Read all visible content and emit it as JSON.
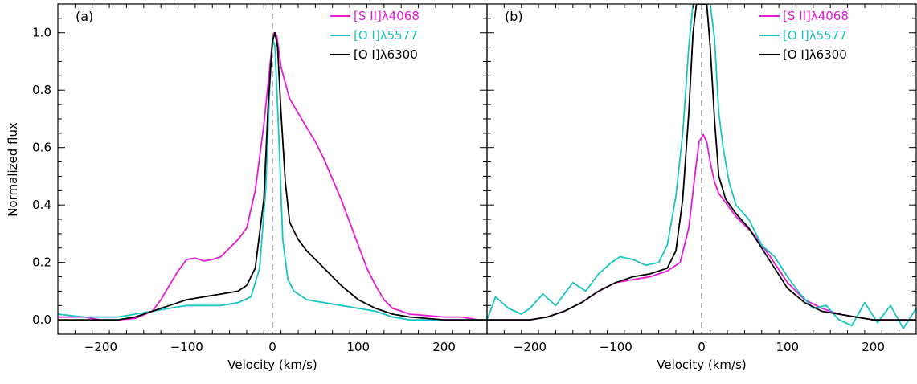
{
  "chart_data": [
    {
      "type": "line",
      "panel_label": "(a)",
      "xlabel": "Velocity (km/s)",
      "ylabel": "Normalized flux",
      "xlim": [
        -250,
        250
      ],
      "ylim": [
        -0.05,
        1.1
      ],
      "xticks": [
        -200,
        -100,
        0,
        100,
        200
      ],
      "yticks": [
        0.0,
        0.2,
        0.4,
        0.6,
        0.8,
        1.0
      ],
      "xtick_labels": [
        "−200",
        "−100",
        "0",
        "100",
        "200"
      ],
      "ytick_labels": [
        "0.0",
        "0.2",
        "0.4",
        "0.6",
        "0.8",
        "1.0"
      ],
      "reference_line_x": 0,
      "legend_position": "top-right",
      "series": [
        {
          "name": "[S II]λ4068",
          "color": "#e619d6",
          "points": [
            [
              -250,
              0.01
            ],
            [
              -220,
              0.01
            ],
            [
              -200,
              0.0
            ],
            [
              -180,
              0.0
            ],
            [
              -160,
              0.005
            ],
            [
              -140,
              0.03
            ],
            [
              -130,
              0.07
            ],
            [
              -120,
              0.12
            ],
            [
              -110,
              0.17
            ],
            [
              -100,
              0.21
            ],
            [
              -90,
              0.215
            ],
            [
              -80,
              0.205
            ],
            [
              -70,
              0.21
            ],
            [
              -60,
              0.22
            ],
            [
              -50,
              0.25
            ],
            [
              -40,
              0.28
            ],
            [
              -30,
              0.32
            ],
            [
              -20,
              0.45
            ],
            [
              -10,
              0.68
            ],
            [
              0,
              0.97
            ],
            [
              2,
              1.0
            ],
            [
              5,
              0.99
            ],
            [
              10,
              0.88
            ],
            [
              20,
              0.77
            ],
            [
              30,
              0.72
            ],
            [
              40,
              0.67
            ],
            [
              50,
              0.62
            ],
            [
              60,
              0.56
            ],
            [
              70,
              0.49
            ],
            [
              80,
              0.42
            ],
            [
              90,
              0.34
            ],
            [
              100,
              0.26
            ],
            [
              110,
              0.18
            ],
            [
              120,
              0.12
            ],
            [
              130,
              0.07
            ],
            [
              140,
              0.04
            ],
            [
              150,
              0.03
            ],
            [
              160,
              0.02
            ],
            [
              180,
              0.015
            ],
            [
              200,
              0.01
            ],
            [
              220,
              0.01
            ],
            [
              240,
              0.0
            ],
            [
              250,
              0.0
            ]
          ]
        },
        {
          "name": "[O I]λ5577",
          "color": "#19c4c4",
          "points": [
            [
              -250,
              0.02
            ],
            [
              -220,
              0.01
            ],
            [
              -200,
              0.01
            ],
            [
              -180,
              0.01
            ],
            [
              -160,
              0.02
            ],
            [
              -140,
              0.03
            ],
            [
              -120,
              0.04
            ],
            [
              -100,
              0.05
            ],
            [
              -80,
              0.05
            ],
            [
              -60,
              0.05
            ],
            [
              -40,
              0.06
            ],
            [
              -25,
              0.08
            ],
            [
              -15,
              0.18
            ],
            [
              -8,
              0.45
            ],
            [
              -3,
              0.82
            ],
            [
              0,
              0.98
            ],
            [
              3,
              0.95
            ],
            [
              8,
              0.6
            ],
            [
              12,
              0.28
            ],
            [
              18,
              0.14
            ],
            [
              25,
              0.1
            ],
            [
              40,
              0.07
            ],
            [
              60,
              0.06
            ],
            [
              80,
              0.05
            ],
            [
              100,
              0.04
            ],
            [
              120,
              0.03
            ],
            [
              140,
              0.01
            ],
            [
              160,
              0.0
            ],
            [
              180,
              0.0
            ],
            [
              200,
              0.0
            ],
            [
              220,
              0.0
            ],
            [
              250,
              0.0
            ]
          ]
        },
        {
          "name": "[O I]λ6300",
          "color": "#000000",
          "points": [
            [
              -250,
              0.0
            ],
            [
              -220,
              0.0
            ],
            [
              -200,
              0.0
            ],
            [
              -180,
              0.0
            ],
            [
              -160,
              0.01
            ],
            [
              -140,
              0.03
            ],
            [
              -120,
              0.05
            ],
            [
              -100,
              0.07
            ],
            [
              -80,
              0.08
            ],
            [
              -60,
              0.09
            ],
            [
              -40,
              0.1
            ],
            [
              -30,
              0.12
            ],
            [
              -20,
              0.18
            ],
            [
              -10,
              0.42
            ],
            [
              -5,
              0.75
            ],
            [
              0,
              0.97
            ],
            [
              3,
              1.0
            ],
            [
              6,
              0.95
            ],
            [
              10,
              0.72
            ],
            [
              15,
              0.48
            ],
            [
              20,
              0.34
            ],
            [
              30,
              0.28
            ],
            [
              40,
              0.24
            ],
            [
              60,
              0.18
            ],
            [
              80,
              0.12
            ],
            [
              100,
              0.07
            ],
            [
              120,
              0.04
            ],
            [
              140,
              0.02
            ],
            [
              160,
              0.01
            ],
            [
              200,
              0.0
            ],
            [
              250,
              0.0
            ]
          ]
        }
      ]
    },
    {
      "type": "line",
      "panel_label": "(b)",
      "xlabel": "Velocity (km/s)",
      "ylabel": "",
      "xlim": [
        -250,
        250
      ],
      "ylim": [
        -0.05,
        1.1
      ],
      "xticks": [
        -200,
        -100,
        0,
        100,
        200
      ],
      "yticks": [
        0.0,
        0.2,
        0.4,
        0.6,
        0.8,
        1.0
      ],
      "xtick_labels": [
        "−200",
        "−100",
        "0",
        "100",
        "200"
      ],
      "ytick_labels": [],
      "reference_line_x": 0,
      "legend_position": "top-right",
      "series": [
        {
          "name": "[S II]λ4068",
          "color": "#e619d6",
          "points": [
            [
              -250,
              0.0
            ],
            [
              -220,
              0.0
            ],
            [
              -200,
              0.0
            ],
            [
              -180,
              0.01
            ],
            [
              -160,
              0.03
            ],
            [
              -140,
              0.06
            ],
            [
              -120,
              0.1
            ],
            [
              -100,
              0.13
            ],
            [
              -80,
              0.14
            ],
            [
              -60,
              0.15
            ],
            [
              -40,
              0.17
            ],
            [
              -25,
              0.2
            ],
            [
              -15,
              0.32
            ],
            [
              -8,
              0.5
            ],
            [
              -3,
              0.62
            ],
            [
              2,
              0.645
            ],
            [
              6,
              0.62
            ],
            [
              10,
              0.55
            ],
            [
              15,
              0.48
            ],
            [
              20,
              0.44
            ],
            [
              30,
              0.4
            ],
            [
              40,
              0.36
            ],
            [
              50,
              0.33
            ],
            [
              60,
              0.3
            ],
            [
              80,
              0.22
            ],
            [
              100,
              0.13
            ],
            [
              120,
              0.07
            ],
            [
              140,
              0.04
            ],
            [
              160,
              0.02
            ],
            [
              180,
              0.01
            ],
            [
              200,
              0.0
            ],
            [
              220,
              0.0
            ],
            [
              250,
              0.0
            ]
          ]
        },
        {
          "name": "[O I]λ5577",
          "color": "#19c4c4",
          "points": [
            [
              -250,
              0.0
            ],
            [
              -240,
              0.08
            ],
            [
              -225,
              0.04
            ],
            [
              -210,
              0.02
            ],
            [
              -200,
              0.04
            ],
            [
              -185,
              0.09
            ],
            [
              -170,
              0.05
            ],
            [
              -150,
              0.13
            ],
            [
              -135,
              0.1
            ],
            [
              -120,
              0.16
            ],
            [
              -105,
              0.2
            ],
            [
              -95,
              0.22
            ],
            [
              -80,
              0.21
            ],
            [
              -65,
              0.19
            ],
            [
              -50,
              0.2
            ],
            [
              -40,
              0.26
            ],
            [
              -30,
              0.43
            ],
            [
              -22,
              0.65
            ],
            [
              -15,
              0.95
            ],
            [
              -10,
              1.1
            ],
            [
              10,
              1.1
            ],
            [
              15,
              0.98
            ],
            [
              20,
              0.72
            ],
            [
              25,
              0.6
            ],
            [
              32,
              0.48
            ],
            [
              40,
              0.4
            ],
            [
              55,
              0.35
            ],
            [
              70,
              0.26
            ],
            [
              85,
              0.22
            ],
            [
              100,
              0.15
            ],
            [
              115,
              0.09
            ],
            [
              130,
              0.04
            ],
            [
              145,
              0.05
            ],
            [
              160,
              0.0
            ],
            [
              175,
              -0.02
            ],
            [
              190,
              0.06
            ],
            [
              205,
              -0.01
            ],
            [
              220,
              0.05
            ],
            [
              235,
              -0.03
            ],
            [
              250,
              0.04
            ]
          ]
        },
        {
          "name": "[O I]λ6300",
          "color": "#000000",
          "points": [
            [
              -250,
              0.0
            ],
            [
              -220,
              0.0
            ],
            [
              -200,
              0.0
            ],
            [
              -180,
              0.01
            ],
            [
              -160,
              0.03
            ],
            [
              -140,
              0.06
            ],
            [
              -120,
              0.1
            ],
            [
              -100,
              0.13
            ],
            [
              -80,
              0.15
            ],
            [
              -60,
              0.16
            ],
            [
              -40,
              0.18
            ],
            [
              -30,
              0.24
            ],
            [
              -22,
              0.42
            ],
            [
              -15,
              0.72
            ],
            [
              -10,
              1.0
            ],
            [
              -6,
              1.1
            ],
            [
              6,
              1.1
            ],
            [
              10,
              0.95
            ],
            [
              15,
              0.7
            ],
            [
              20,
              0.5
            ],
            [
              28,
              0.42
            ],
            [
              40,
              0.37
            ],
            [
              55,
              0.32
            ],
            [
              70,
              0.25
            ],
            [
              85,
              0.18
            ],
            [
              100,
              0.11
            ],
            [
              120,
              0.06
            ],
            [
              140,
              0.03
            ],
            [
              160,
              0.02
            ],
            [
              180,
              0.01
            ],
            [
              200,
              0.0
            ],
            [
              250,
              0.0
            ]
          ]
        }
      ]
    }
  ]
}
